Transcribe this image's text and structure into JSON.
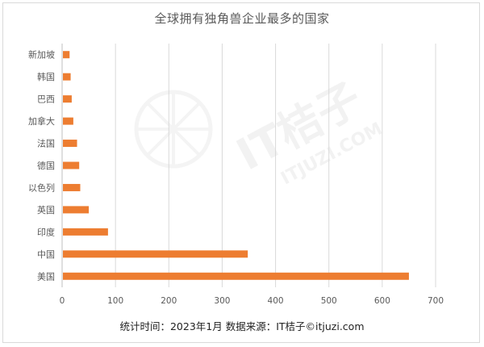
{
  "title": "全球拥有独角兽企业最多的国家",
  "source": "统计时间：2023年1月 数据来源：IT桔子©itjuzi.com",
  "watermark": {
    "brand": "IT桔子",
    "url": "ITJUZI.COM"
  },
  "colors": {
    "bar": "#ed7d31",
    "grid": "#d9d9d9",
    "text": "#595959"
  },
  "chart_data": {
    "type": "bar",
    "orientation": "horizontal",
    "title": "全球拥有独角兽企业最多的国家",
    "categories": [
      "新加坡",
      "韩国",
      "巴西",
      "加拿大",
      "法国",
      "德国",
      "以色列",
      "英国",
      "印度",
      "中国",
      "美国"
    ],
    "values": [
      14,
      16,
      18,
      21,
      28,
      32,
      34,
      50,
      86,
      348,
      650
    ],
    "xlim": [
      0,
      700
    ],
    "xticks": [
      0,
      100,
      200,
      300,
      400,
      500,
      600,
      700
    ],
    "grid": true,
    "legend": "none"
  }
}
